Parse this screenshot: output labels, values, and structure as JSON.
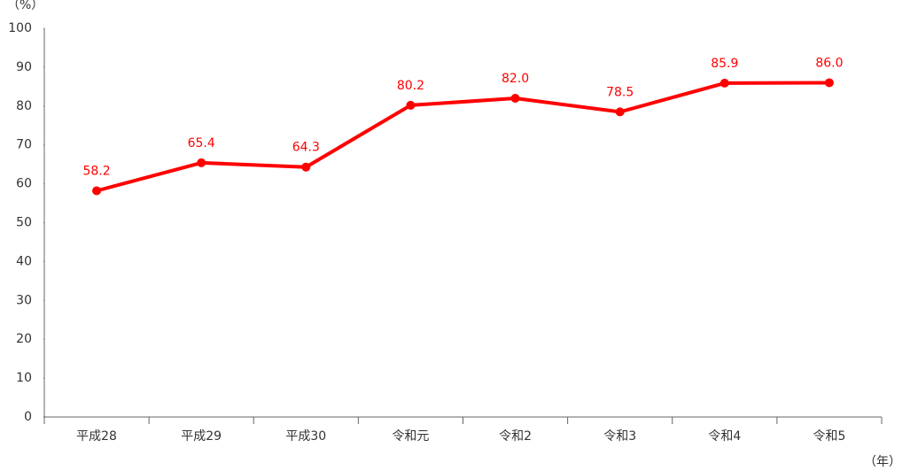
{
  "chart_data": {
    "type": "line",
    "y_label": "（%）",
    "x_label": "（年）",
    "categories": [
      "平成28",
      "平成29",
      "平成30",
      "令和元",
      "令和2",
      "令和3",
      "令和4",
      "令和5"
    ],
    "series": [
      {
        "color": "#ff0000",
        "values": [
          58.2,
          65.4,
          64.3,
          80.2,
          82.0,
          78.5,
          85.9,
          86.0
        ],
        "value_labels": [
          "58.2",
          "65.4",
          "64.3",
          "80.2",
          "82.0",
          "78.5",
          "85.9",
          "86.0"
        ]
      }
    ],
    "ylim": [
      0,
      100
    ],
    "yticks": [
      0,
      10,
      20,
      30,
      40,
      50,
      60,
      70,
      80,
      90,
      100
    ],
    "grid": false
  }
}
